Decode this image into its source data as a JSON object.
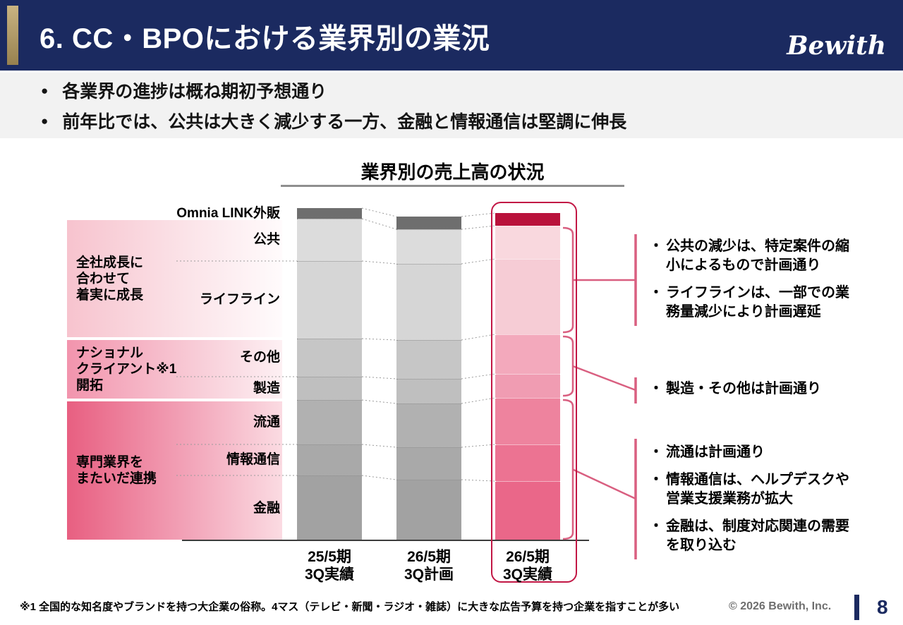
{
  "header": {
    "title": "6. CC・BPOにおける業界別の業況",
    "logo_text": "Bewith"
  },
  "summary": {
    "marker": "●",
    "bullets": [
      "各業界の進捗は概ね期初予想通り",
      "前年比では、公共は大きく減少する一方、金融と情報通信は堅調に伸長"
    ]
  },
  "chart_data": {
    "type": "bar",
    "stacked": true,
    "title": "業界別の売上高の状況",
    "axis_values_shown": false,
    "value_unit": "relative height (no numeric axis shown in chart)",
    "segments": [
      "Omnia LINK外販",
      "公共",
      "ライフライン",
      "その他",
      "製造",
      "流通",
      "情報通信",
      "金融"
    ],
    "bars": [
      {
        "label": [
          "25/5期",
          "3Q実績"
        ],
        "palette": "gray",
        "highlight": false,
        "values": [
          15,
          60,
          110,
          54,
          33,
          63,
          44,
          93
        ]
      },
      {
        "label": [
          "26/5期",
          "3Q計画"
        ],
        "palette": "gray",
        "highlight": false,
        "values": [
          18,
          49,
          108,
          55,
          35,
          62,
          46,
          87
        ]
      },
      {
        "label": [
          "26/5期",
          "3Q実績"
        ],
        "palette": "pink",
        "highlight": true,
        "values": [
          18,
          47,
          107,
          56,
          34,
          66,
          52,
          85
        ]
      }
    ],
    "palettes": {
      "gray": [
        "#6e6e6e",
        "#dcdcdc",
        "#d6d6d6",
        "#c6c6c6",
        "#bfbfbf",
        "#b1b1b1",
        "#a9a9a9",
        "#a2a2a2"
      ],
      "pink": [
        "#b9123b",
        "#f9d8de",
        "#f6ccd5",
        "#f3a9bc",
        "#f09cb2",
        "#ee839e",
        "#ec7392",
        "#ea6789"
      ]
    },
    "groups": [
      {
        "label_lines": [
          "全社成長に",
          "合わせて",
          "着実に成長"
        ],
        "covers": [
          "公共",
          "ライフライン"
        ]
      },
      {
        "label_lines": [
          "ナショナル",
          "クライアント※1",
          "開拓"
        ],
        "covers": [
          "その他",
          "製造"
        ]
      },
      {
        "label_lines": [
          "専門業界を",
          "またいだ連携"
        ],
        "covers": [
          "流通",
          "情報通信",
          "金融"
        ]
      }
    ]
  },
  "annotations": {
    "marker": "・",
    "groups": [
      {
        "items": [
          "公共の減少は、特定案件の縮小によるもので計画通り",
          "ライフラインは、一部での業務量減少により計画遅延"
        ]
      },
      {
        "items": [
          "製造・その他は計画通り"
        ]
      },
      {
        "items": [
          "流通は計画通り",
          "情報通信は、ヘルプデスクや営業支援業務が拡大",
          "金融は、制度対応関連の需要を取り込む"
        ]
      }
    ]
  },
  "footer": {
    "footnote": "※1 全国的な知名度やブランドを持つ大企業の俗称。4マス（テレビ・新聞・ラジオ・雑誌）に大きな広告予算を持つ企業を指すことが多い",
    "copyright": "© 2026 Bewith, Inc.",
    "page_number": "8"
  }
}
